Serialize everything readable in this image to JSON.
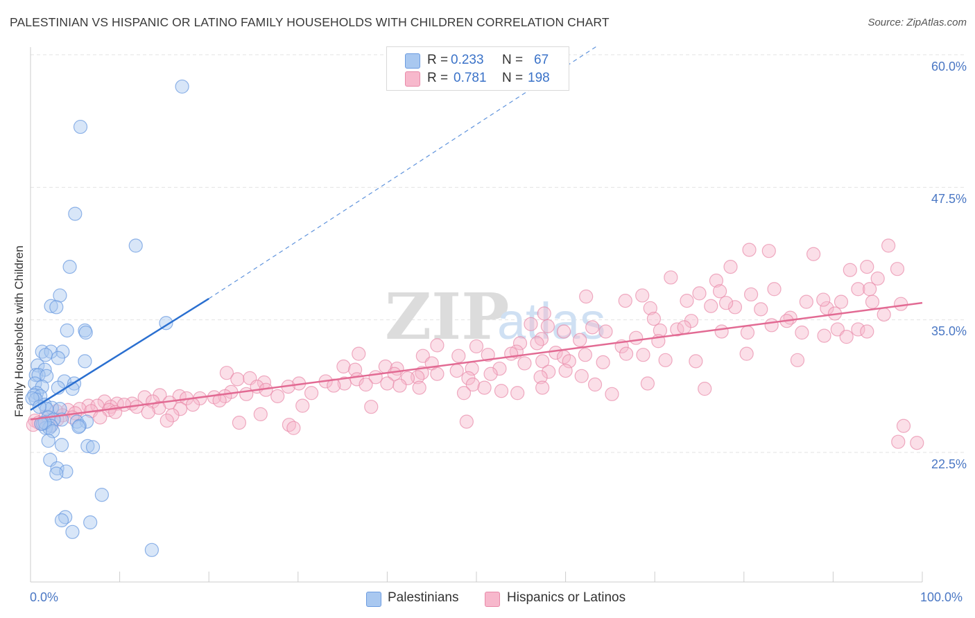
{
  "header": {
    "title": "PALESTINIAN VS HISPANIC OR LATINO FAMILY HOUSEHOLDS WITH CHILDREN CORRELATION CHART",
    "source": "Source: ZipAtlas.com"
  },
  "legend": {
    "rows": [
      {
        "r_label": "R =",
        "r_value": "0.233",
        "n_label": "N =",
        "n_value": "67",
        "color": "#a9c8f0",
        "stroke": "#6b9be0"
      },
      {
        "r_label": "R =",
        "r_value": "0.781",
        "n_label": "N =",
        "n_value": "198",
        "color": "#f7b8cc",
        "stroke": "#e889a8"
      }
    ]
  },
  "bottom_legend": {
    "palestinians": "Palestinians",
    "hispanics": "Hispanics or Latinos"
  },
  "colors": {
    "blue_fill": "#a9c8f0",
    "blue_stroke": "#6b9be0",
    "blue_line": "#2a6fd0",
    "pink_fill": "#f7b8cc",
    "pink_stroke": "#e889a8",
    "pink_line": "#e26a93",
    "tick_text": "#4a77c4",
    "grid": "#e3e3e3"
  },
  "chart_data": {
    "type": "scatter",
    "title": "PALESTINIAN VS HISPANIC OR LATINO FAMILY HOUSEHOLDS WITH CHILDREN CORRELATION CHART",
    "xlabel": "",
    "ylabel": "Family Households with Children",
    "x_tick_labels": [
      "0.0%",
      "100.0%"
    ],
    "y_tick_labels": [
      "22.5%",
      "35.0%",
      "47.5%",
      "60.0%"
    ],
    "y_ticks": [
      22.5,
      35.0,
      47.5,
      60.0
    ],
    "xlim": [
      0,
      100
    ],
    "ylim": [
      10.8,
      62.5
    ],
    "grid": true,
    "legend_position": "top-center",
    "watermark": "ZIPatlas",
    "series": [
      {
        "name": "Palestinians",
        "R": 0.233,
        "N": 67,
        "trend": {
          "x0": 0,
          "y0": 26.5,
          "x1": 20,
          "y1": 37.0,
          "dashed_to_x": 63.5,
          "dashed_to_y": 60.8
        },
        "points": [
          [
            17.0,
            57.0
          ],
          [
            5.6,
            53.2
          ],
          [
            5.0,
            45.0
          ],
          [
            11.8,
            42.0
          ],
          [
            4.4,
            40.0
          ],
          [
            3.3,
            37.3
          ],
          [
            2.3,
            36.3
          ],
          [
            2.9,
            36.2
          ],
          [
            15.2,
            34.7
          ],
          [
            4.1,
            34.0
          ],
          [
            6.1,
            34.0
          ],
          [
            6.2,
            33.8
          ],
          [
            1.3,
            32.0
          ],
          [
            2.3,
            32.0
          ],
          [
            3.6,
            32.0
          ],
          [
            1.7,
            31.7
          ],
          [
            3.1,
            31.4
          ],
          [
            6.1,
            31.1
          ],
          [
            0.8,
            30.7
          ],
          [
            1.6,
            30.3
          ],
          [
            0.6,
            29.8
          ],
          [
            0.9,
            29.8
          ],
          [
            1.8,
            29.7
          ],
          [
            3.8,
            29.2
          ],
          [
            4.9,
            29.0
          ],
          [
            0.5,
            29.0
          ],
          [
            1.3,
            28.7
          ],
          [
            3.1,
            28.6
          ],
          [
            4.7,
            28.5
          ],
          [
            0.7,
            28.1
          ],
          [
            0.4,
            27.9
          ],
          [
            1.1,
            27.8
          ],
          [
            0.6,
            27.5
          ],
          [
            0.2,
            27.6
          ],
          [
            1.6,
            27.0
          ],
          [
            2.4,
            26.7
          ],
          [
            1.8,
            26.6
          ],
          [
            3.3,
            26.6
          ],
          [
            1.0,
            26.8
          ],
          [
            2.0,
            25.8
          ],
          [
            3.5,
            25.6
          ],
          [
            2.6,
            25.6
          ],
          [
            5.2,
            25.4
          ],
          [
            6.3,
            25.4
          ],
          [
            1.4,
            25.2
          ],
          [
            5.5,
            25.0
          ],
          [
            2.3,
            25.0
          ],
          [
            5.4,
            24.9
          ],
          [
            1.7,
            24.8
          ],
          [
            2.1,
            24.8
          ],
          [
            1.6,
            25.3
          ],
          [
            2.5,
            24.5
          ],
          [
            2.0,
            23.6
          ],
          [
            3.5,
            23.2
          ],
          [
            6.4,
            23.1
          ],
          [
            7.0,
            23.0
          ],
          [
            2.2,
            21.8
          ],
          [
            3.0,
            21.0
          ],
          [
            4.0,
            20.7
          ],
          [
            2.9,
            20.5
          ],
          [
            8.0,
            18.5
          ],
          [
            3.9,
            16.4
          ],
          [
            3.5,
            16.1
          ],
          [
            6.7,
            15.9
          ],
          [
            4.7,
            15.0
          ],
          [
            13.6,
            13.3
          ],
          [
            1.2,
            25.2
          ]
        ]
      },
      {
        "name": "Hispanics or Latinos",
        "R": 0.781,
        "N": 198,
        "trend": {
          "x0": 0,
          "y0": 25.6,
          "x1": 100,
          "y1": 36.6
        },
        "points": [
          [
            96.2,
            42.0
          ],
          [
            80.6,
            41.6
          ],
          [
            87.8,
            41.2
          ],
          [
            82.8,
            41.5
          ],
          [
            93.8,
            40.0
          ],
          [
            78.5,
            40.0
          ],
          [
            91.9,
            39.7
          ],
          [
            97.2,
            39.8
          ],
          [
            95.0,
            38.9
          ],
          [
            76.9,
            38.7
          ],
          [
            71.8,
            39.0
          ],
          [
            92.8,
            37.9
          ],
          [
            94.1,
            37.9
          ],
          [
            83.4,
            37.9
          ],
          [
            77.3,
            37.7
          ],
          [
            68.6,
            37.3
          ],
          [
            80.8,
            37.4
          ],
          [
            75.0,
            37.5
          ],
          [
            62.3,
            37.2
          ],
          [
            66.7,
            36.8
          ],
          [
            73.6,
            36.8
          ],
          [
            79.0,
            36.2
          ],
          [
            97.6,
            36.5
          ],
          [
            94.4,
            36.7
          ],
          [
            87.0,
            36.7
          ],
          [
            89.3,
            36.1
          ],
          [
            90.9,
            36.7
          ],
          [
            76.3,
            36.3
          ],
          [
            81.9,
            36.0
          ],
          [
            69.5,
            36.1
          ],
          [
            90.2,
            35.6
          ],
          [
            57.6,
            35.6
          ],
          [
            95.7,
            35.5
          ],
          [
            85.2,
            35.2
          ],
          [
            84.8,
            34.9
          ],
          [
            69.9,
            35.1
          ],
          [
            74.1,
            34.9
          ],
          [
            56.1,
            34.6
          ],
          [
            58.0,
            34.4
          ],
          [
            63.0,
            34.3
          ],
          [
            70.6,
            34.0
          ],
          [
            72.5,
            34.1
          ],
          [
            73.3,
            34.3
          ],
          [
            77.5,
            33.9
          ],
          [
            90.5,
            34.1
          ],
          [
            92.8,
            34.1
          ],
          [
            93.8,
            33.9
          ],
          [
            80.4,
            33.8
          ],
          [
            86.5,
            33.8
          ],
          [
            91.5,
            33.4
          ],
          [
            89.0,
            33.5
          ],
          [
            59.8,
            33.9
          ],
          [
            64.5,
            33.9
          ],
          [
            61.6,
            33.1
          ],
          [
            57.3,
            33.2
          ],
          [
            70.4,
            33.0
          ],
          [
            54.9,
            32.8
          ],
          [
            56.8,
            32.8
          ],
          [
            45.6,
            32.6
          ],
          [
            50.0,
            32.5
          ],
          [
            66.3,
            32.5
          ],
          [
            54.5,
            32.0
          ],
          [
            53.9,
            31.8
          ],
          [
            58.9,
            31.9
          ],
          [
            66.8,
            31.8
          ],
          [
            62.2,
            31.7
          ],
          [
            51.3,
            31.7
          ],
          [
            36.8,
            31.8
          ],
          [
            44.0,
            31.6
          ],
          [
            48.0,
            31.6
          ],
          [
            59.8,
            31.5
          ],
          [
            68.7,
            31.7
          ],
          [
            71.2,
            31.2
          ],
          [
            74.6,
            31.1
          ],
          [
            57.4,
            31.1
          ],
          [
            60.4,
            31.1
          ],
          [
            45.0,
            30.9
          ],
          [
            39.8,
            30.6
          ],
          [
            35.1,
            30.6
          ],
          [
            49.5,
            30.4
          ],
          [
            41.1,
            30.4
          ],
          [
            52.6,
            30.4
          ],
          [
            36.4,
            30.3
          ],
          [
            47.8,
            30.2
          ],
          [
            58.1,
            30.1
          ],
          [
            43.9,
            30.0
          ],
          [
            22.0,
            30.0
          ],
          [
            51.6,
            29.9
          ],
          [
            40.8,
            29.9
          ],
          [
            45.6,
            29.9
          ],
          [
            57.2,
            29.6
          ],
          [
            61.8,
            29.7
          ],
          [
            43.4,
            29.6
          ],
          [
            38.7,
            29.6
          ],
          [
            42.3,
            29.5
          ],
          [
            49.1,
            29.5
          ],
          [
            23.2,
            29.4
          ],
          [
            24.6,
            29.5
          ],
          [
            36.6,
            29.4
          ],
          [
            33.1,
            29.2
          ],
          [
            35.2,
            29.0
          ],
          [
            26.2,
            29.1
          ],
          [
            30.1,
            29.0
          ],
          [
            40.0,
            29.0
          ],
          [
            41.4,
            28.8
          ],
          [
            49.6,
            28.9
          ],
          [
            63.3,
            28.9
          ],
          [
            37.6,
            28.9
          ],
          [
            25.4,
            28.7
          ],
          [
            57.4,
            28.6
          ],
          [
            28.9,
            28.7
          ],
          [
            34.0,
            28.8
          ],
          [
            43.6,
            28.6
          ],
          [
            50.9,
            28.6
          ],
          [
            75.6,
            28.5
          ],
          [
            26.4,
            28.4
          ],
          [
            22.5,
            28.2
          ],
          [
            31.5,
            28.1
          ],
          [
            48.6,
            28.1
          ],
          [
            54.6,
            28.1
          ],
          [
            65.2,
            28.0
          ],
          [
            24.2,
            28.0
          ],
          [
            21.8,
            27.8
          ],
          [
            14.5,
            27.9
          ],
          [
            27.7,
            27.8
          ],
          [
            20.6,
            27.7
          ],
          [
            16.7,
            27.8
          ],
          [
            12.8,
            27.7
          ],
          [
            19.0,
            27.6
          ],
          [
            17.5,
            27.6
          ],
          [
            21.2,
            27.4
          ],
          [
            13.7,
            27.3
          ],
          [
            8.3,
            27.3
          ],
          [
            15.6,
            27.2
          ],
          [
            9.7,
            27.1
          ],
          [
            11.4,
            27.1
          ],
          [
            10.5,
            27.0
          ],
          [
            18.2,
            27.0
          ],
          [
            6.5,
            26.9
          ],
          [
            9.0,
            26.8
          ],
          [
            11.9,
            26.8
          ],
          [
            7.5,
            26.9
          ],
          [
            14.4,
            26.7
          ],
          [
            5.5,
            26.6
          ],
          [
            8.8,
            26.5
          ],
          [
            4.2,
            26.5
          ],
          [
            16.8,
            26.6
          ],
          [
            30.5,
            26.9
          ],
          [
            38.2,
            26.8
          ],
          [
            2.9,
            26.4
          ],
          [
            6.8,
            26.4
          ],
          [
            13.2,
            26.3
          ],
          [
            5.0,
            26.2
          ],
          [
            9.5,
            26.3
          ],
          [
            15.9,
            26.0
          ],
          [
            25.8,
            26.1
          ],
          [
            3.6,
            26.0
          ],
          [
            1.7,
            25.9
          ],
          [
            4.7,
            25.8
          ],
          [
            7.8,
            25.8
          ],
          [
            3.0,
            25.6
          ],
          [
            2.0,
            25.5
          ],
          [
            0.5,
            25.5
          ],
          [
            15.3,
            25.5
          ],
          [
            23.4,
            25.3
          ],
          [
            0.9,
            25.3
          ],
          [
            1.2,
            25.2
          ],
          [
            0.3,
            25.1
          ],
          [
            2.3,
            25.0
          ],
          [
            29.0,
            25.1
          ],
          [
            48.9,
            25.4
          ],
          [
            97.9,
            25.0
          ],
          [
            29.5,
            24.8
          ],
          [
            97.3,
            23.5
          ],
          [
            99.4,
            23.4
          ],
          [
            69.2,
            29.0
          ],
          [
            64.2,
            31.0
          ],
          [
            80.3,
            31.8
          ],
          [
            78.0,
            36.6
          ],
          [
            83.1,
            34.5
          ],
          [
            86.0,
            31.2
          ],
          [
            88.9,
            36.9
          ],
          [
            52.8,
            28.3
          ],
          [
            55.4,
            30.9
          ],
          [
            60.0,
            30.2
          ],
          [
            67.9,
            33.3
          ]
        ]
      }
    ]
  }
}
